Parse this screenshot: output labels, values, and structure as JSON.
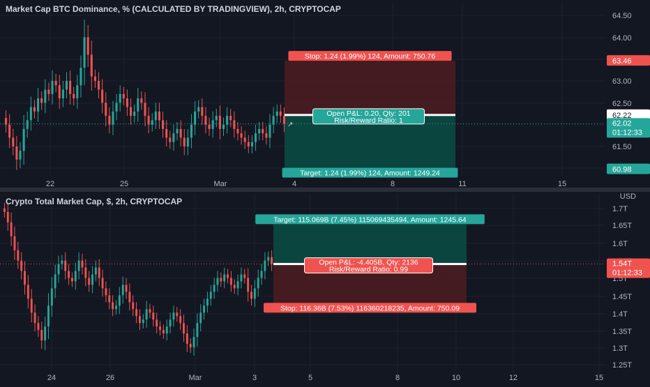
{
  "colors": {
    "background": "#131722",
    "grid": "#1e222d",
    "axis_text": "#b2b5be",
    "up": "#26a69a",
    "down": "#ef5350",
    "profit_zone": "#0b4a44",
    "loss_zone": "#4a1c20",
    "entry_line": "#ffffff"
  },
  "icons": {
    "cursor": "crosshair-icon"
  },
  "chart_data": [
    {
      "type": "candlestick",
      "title": "Market Cap BTC Dominance, % (CALCULATED BY TRADINGVIEW), 2h, CRYPTOCAP",
      "x_ticks": [
        "22",
        "25",
        "Mar",
        "4",
        "8",
        "11",
        "15"
      ],
      "y_ticks": [
        "64.50",
        "64.00",
        "63.00",
        "62.50",
        "61.50"
      ],
      "ylim": [
        60.8,
        64.6
      ],
      "price_labels": {
        "stop_level": "63.46",
        "entry_level": "62.22",
        "last_price": "62.02",
        "countdown": "01:12:33",
        "target_level": "60.98"
      },
      "position": {
        "kind": "short",
        "entry": 62.22,
        "stop": 63.46,
        "target": 60.98,
        "stop_label": "Stop: 1.24 (1.99%) 124, Amount: 750.76",
        "target_label": "Target: 1.24 (1.99%) 124, Amount: 1249.24",
        "pnl_label": "Open P&L: 0.20, Qty: 201",
        "ratio_label": "Risk/Reward Ratio: 1"
      },
      "series_close": [
        62.0,
        61.7,
        61.5,
        61.2,
        61.4,
        61.9,
        62.1,
        62.4,
        62.3,
        62.6,
        62.5,
        62.8,
        62.7,
        63.0,
        62.9,
        62.6,
        62.8,
        63.0,
        62.7,
        62.6,
        62.9,
        63.3,
        64.0,
        63.6,
        63.1,
        63.0,
        62.8,
        62.5,
        62.2,
        62.0,
        62.3,
        62.5,
        62.7,
        62.6,
        62.4,
        62.2,
        62.3,
        62.6,
        62.5,
        62.2,
        62.0,
        62.1,
        62.3,
        62.1,
        61.9,
        61.7,
        61.6,
        61.8,
        61.9,
        61.7,
        61.5,
        61.7,
        62.0,
        62.3,
        62.4,
        62.2,
        62.0,
        61.9,
        62.1,
        62.2,
        61.9,
        62.0,
        62.2,
        62.1,
        61.9,
        61.8,
        61.7,
        61.6,
        61.5,
        61.6,
        61.8,
        61.9,
        61.8,
        61.7,
        62.0,
        62.2,
        62.3,
        62.2,
        62.02
      ]
    },
    {
      "type": "candlestick",
      "title": "Crypto Total Market Cap, $, 2h, CRYPTOCAP",
      "currency": "USD",
      "x_ticks": [
        "24",
        "26",
        "Mar",
        "3",
        "5",
        "8",
        "10",
        "12",
        "15"
      ],
      "y_ticks": [
        "1.7T",
        "1.65T",
        "1.6T",
        "1.55T",
        "1.5T",
        "1.45T",
        "1.4T",
        "1.35T",
        "1.3T",
        "1.25T"
      ],
      "ylim": [
        1.245,
        1.71
      ],
      "price_labels": {
        "last_price": "1.54T",
        "countdown": "01:12:33"
      },
      "position": {
        "kind": "long",
        "entry": 1.54,
        "target": 1.655,
        "stop": 1.424,
        "target_label": "Target: 115.069B (7.45%) 115069435494, Amount: 1245.64",
        "stop_label": "Stop: 116.36B (7.53%) 116360218235, Amount: 750.09",
        "pnl_label": "Open P&L: -4.405B, Qty: 2136",
        "ratio_label": "Risk/Reward Ratio: 0.99"
      },
      "series_close": [
        1.69,
        1.66,
        1.62,
        1.58,
        1.55,
        1.52,
        1.48,
        1.44,
        1.4,
        1.37,
        1.35,
        1.32,
        1.36,
        1.42,
        1.47,
        1.51,
        1.54,
        1.55,
        1.52,
        1.5,
        1.49,
        1.52,
        1.55,
        1.53,
        1.5,
        1.48,
        1.51,
        1.53,
        1.5,
        1.47,
        1.45,
        1.43,
        1.41,
        1.42,
        1.45,
        1.48,
        1.46,
        1.43,
        1.41,
        1.39,
        1.37,
        1.38,
        1.41,
        1.4,
        1.38,
        1.36,
        1.35,
        1.34,
        1.36,
        1.38,
        1.4,
        1.39,
        1.37,
        1.34,
        1.31,
        1.3,
        1.33,
        1.37,
        1.4,
        1.42,
        1.44,
        1.46,
        1.48,
        1.5,
        1.49,
        1.51,
        1.5,
        1.48,
        1.47,
        1.49,
        1.51,
        1.5,
        1.46,
        1.44,
        1.47,
        1.5,
        1.52,
        1.55,
        1.56,
        1.54
      ]
    }
  ]
}
